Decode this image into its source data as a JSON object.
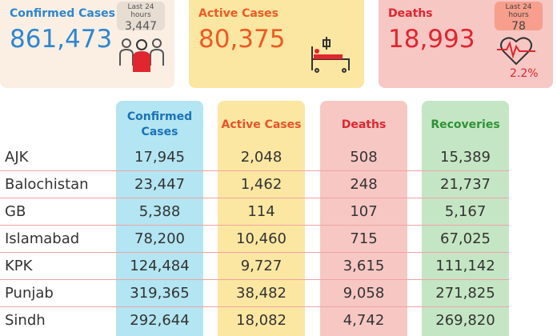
{
  "summary": {
    "confirmed": {
      "title": "Confirmed Cases",
      "value": "861,473",
      "last24_label": "Last 24 hours",
      "last24_value": "3,447"
    },
    "active": {
      "title": "Active Cases",
      "value": "80,375"
    },
    "deaths": {
      "title": "Deaths",
      "value": "18,993",
      "last24_label": "Last 24 hours",
      "last24_value": "78",
      "percent": "2.2%"
    }
  },
  "table": {
    "headers": [
      "Confirmed Cases",
      "Active Cases",
      "Deaths",
      "Recoveries"
    ],
    "rows": [
      {
        "region": "AJK",
        "confirmed": "17,945",
        "active": "2,048",
        "deaths": "508",
        "recoveries": "15,389"
      },
      {
        "region": "Balochistan",
        "confirmed": "23,447",
        "active": "1,462",
        "deaths": "248",
        "recoveries": "21,737"
      },
      {
        "region": "GB",
        "confirmed": "5,388",
        "active": "114",
        "deaths": "107",
        "recoveries": "5,167"
      },
      {
        "region": "Islamabad",
        "confirmed": "78,200",
        "active": "10,460",
        "deaths": "715",
        "recoveries": "67,025"
      },
      {
        "region": "KPK",
        "confirmed": "124,484",
        "active": "9,727",
        "deaths": "3,615",
        "recoveries": "111,142"
      },
      {
        "region": "Punjab",
        "confirmed": "319,365",
        "active": "38,482",
        "deaths": "9,058",
        "recoveries": "271,825"
      },
      {
        "region": "Sindh",
        "confirmed": "292,644",
        "active": "18,082",
        "deaths": "4,742",
        "recoveries": "269,820"
      }
    ]
  },
  "icons": {
    "confirmed": "people-group-icon",
    "active": "hospital-bed-icon",
    "deaths": "heart-pulse-icon"
  },
  "colors": {
    "confirmed": "#2e86cf",
    "active": "#ef5a24",
    "deaths": "#e0262f",
    "recoveries": "#2e9237"
  }
}
